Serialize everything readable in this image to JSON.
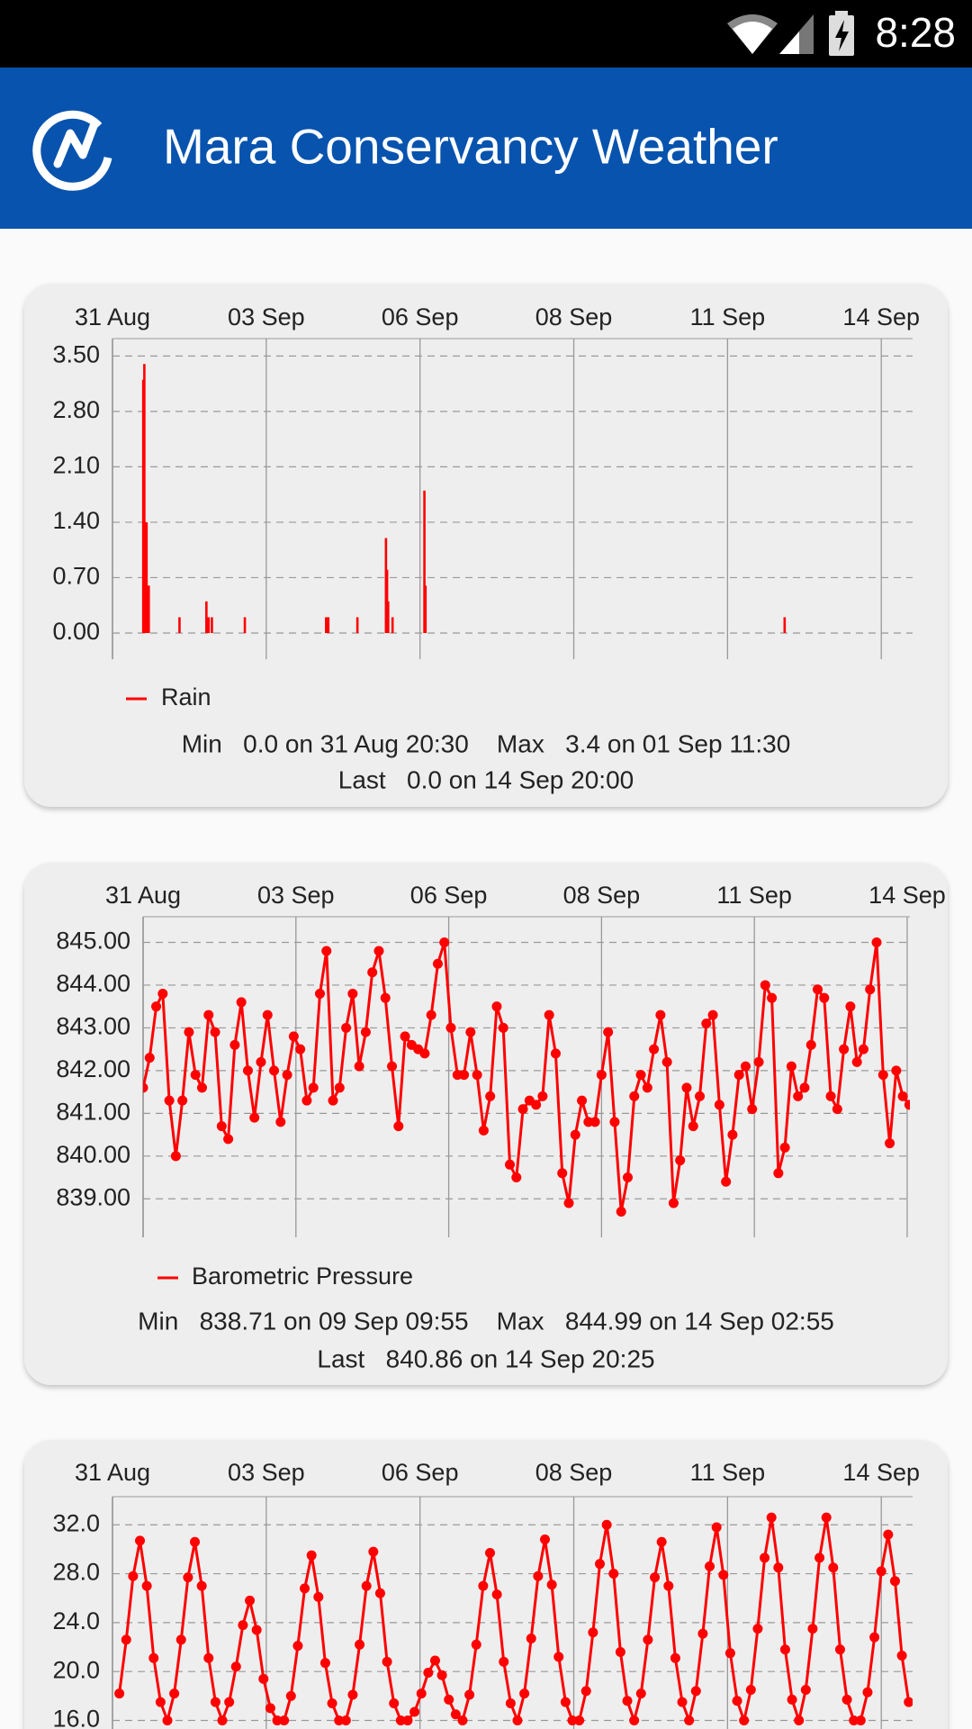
{
  "status_bar": {
    "time": "8:28"
  },
  "app_bar": {
    "title": "Mara Conservancy Weather"
  },
  "chart_data": [
    {
      "type": "bar",
      "xlim": [
        0,
        14.57
      ],
      "xticks": [
        {
          "value": 0,
          "label": "31 Aug"
        },
        {
          "value": 2.8,
          "label": "03 Sep"
        },
        {
          "value": 5.6,
          "label": "06 Sep"
        },
        {
          "value": 8.4,
          "label": "08 Sep"
        },
        {
          "value": 11.2,
          "label": "11 Sep"
        },
        {
          "value": 14,
          "label": "14 Sep"
        }
      ],
      "ylim": [
        -0.33,
        3.72
      ],
      "yticks": [
        {
          "value": 0,
          "label": "0.00"
        },
        {
          "value": 0.7,
          "label": "0.70"
        },
        {
          "value": 1.4,
          "label": "1.40"
        },
        {
          "value": 2.1,
          "label": "2.10"
        },
        {
          "value": 2.8,
          "label": "2.80"
        },
        {
          "value": 3.5,
          "label": "3.50"
        }
      ],
      "grid": true,
      "x": [
        0.56,
        0.58,
        0.62,
        0.66,
        1.22,
        1.71,
        1.75,
        1.81,
        2.41,
        3.89,
        3.93,
        4.46,
        4.98,
        5.0,
        5.02,
        5.1,
        5.68,
        5.7,
        12.24
      ],
      "series": [
        {
          "name": "Rain",
          "color": "#ff0000",
          "values": [
            3.2,
            3.4,
            1.4,
            0.6,
            0.2,
            0.4,
            0.2,
            0.2,
            0.2,
            0.2,
            0.2,
            0.2,
            1.2,
            0.8,
            0.4,
            0.2,
            1.8,
            0.6,
            0.2
          ]
        }
      ],
      "summary": [
        "Min   0.0 on 31 Aug 20:30    Max   3.4 on 01 Sep 11:30",
        "Last   0.0 on 14 Sep 20:00"
      ]
    },
    {
      "type": "line",
      "xlim": [
        0,
        14.05
      ],
      "xticks": [
        {
          "value": 0,
          "label": "31 Aug"
        },
        {
          "value": 2.8,
          "label": "03 Sep"
        },
        {
          "value": 5.6,
          "label": "06 Sep"
        },
        {
          "value": 8.4,
          "label": "08 Sep"
        },
        {
          "value": 11.2,
          "label": "11 Sep"
        },
        {
          "value": 14,
          "label": "14 Sep"
        }
      ],
      "ylim": [
        838.1,
        845.6
      ],
      "yticks": [
        {
          "value": 839,
          "label": "839.00"
        },
        {
          "value": 840,
          "label": "840.00"
        },
        {
          "value": 841,
          "label": "841.00"
        },
        {
          "value": 842,
          "label": "842.00"
        },
        {
          "value": 843,
          "label": "843.00"
        },
        {
          "value": 844,
          "label": "844.00"
        },
        {
          "value": 845,
          "label": "845.00"
        }
      ],
      "grid": true,
      "x": [
        0,
        0.12,
        0.24,
        0.36,
        0.48,
        0.6,
        0.72,
        0.84,
        0.96,
        1.08,
        1.2,
        1.32,
        1.44,
        1.56,
        1.68,
        1.8,
        1.92,
        2.04,
        2.16,
        2.28,
        2.4,
        2.52,
        2.64,
        2.76,
        2.88,
        3,
        3.12,
        3.24,
        3.36,
        3.48,
        3.6,
        3.72,
        3.84,
        3.96,
        4.08,
        4.2,
        4.32,
        4.44,
        4.56,
        4.68,
        4.8,
        4.92,
        5.04,
        5.16,
        5.28,
        5.4,
        5.52,
        5.64,
        5.76,
        5.88,
        6,
        6.12,
        6.24,
        6.36,
        6.48,
        6.6,
        6.72,
        6.84,
        6.96,
        7.08,
        7.2,
        7.32,
        7.44,
        7.56,
        7.68,
        7.8,
        7.92,
        8.04,
        8.16,
        8.28,
        8.4,
        8.52,
        8.64,
        8.76,
        8.88,
        9,
        9.12,
        9.24,
        9.36,
        9.48,
        9.6,
        9.72,
        9.84,
        9.96,
        10.08,
        10.2,
        10.32,
        10.44,
        10.56,
        10.68,
        10.8,
        10.92,
        11.04,
        11.16,
        11.28,
        11.4,
        11.52,
        11.64,
        11.76,
        11.88,
        12,
        12.12,
        12.24,
        12.36,
        12.48,
        12.6,
        12.72,
        12.84,
        12.96,
        13.08,
        13.2,
        13.32,
        13.44,
        13.56,
        13.68,
        13.8,
        13.92,
        14.04
      ],
      "series": [
        {
          "name": "Barometric Pressure",
          "color": "#ff0000",
          "values": [
            841.6,
            842.3,
            843.5,
            843.8,
            841.3,
            840.0,
            841.3,
            842.9,
            841.9,
            841.6,
            843.3,
            842.9,
            840.7,
            840.4,
            842.6,
            843.6,
            842.0,
            840.9,
            842.2,
            843.3,
            842.0,
            840.8,
            841.9,
            842.8,
            842.5,
            841.3,
            841.6,
            843.8,
            844.8,
            841.3,
            841.6,
            843.0,
            843.8,
            842.1,
            842.9,
            844.3,
            844.8,
            843.7,
            842.1,
            840.7,
            842.8,
            842.6,
            842.5,
            842.4,
            843.3,
            844.5,
            845.0,
            843.0,
            841.9,
            841.9,
            842.9,
            841.9,
            840.6,
            841.4,
            843.5,
            843.0,
            839.8,
            839.5,
            841.1,
            841.3,
            841.2,
            841.4,
            843.3,
            842.4,
            839.6,
            838.9,
            840.5,
            841.3,
            840.8,
            840.8,
            841.9,
            842.9,
            840.8,
            838.7,
            839.5,
            841.4,
            841.9,
            841.6,
            842.5,
            843.3,
            842.2,
            838.9,
            839.9,
            841.6,
            840.7,
            841.4,
            843.1,
            843.3,
            841.2,
            839.4,
            840.5,
            841.9,
            842.1,
            841.1,
            842.2,
            844.0,
            843.7,
            839.6,
            840.2,
            842.1,
            841.4,
            841.6,
            842.6,
            843.9,
            843.7,
            841.4,
            841.1,
            842.5,
            843.5,
            842.2,
            842.5,
            843.9,
            845.0,
            841.9,
            840.3,
            842.0,
            841.4,
            841.2
          ]
        }
      ],
      "summary": [
        "Min   838.71 on 09 Sep 09:55    Max   844.99 on 14 Sep 02:55",
        "Last   840.86 on 14 Sep 20:25"
      ]
    },
    {
      "type": "line",
      "xlim": [
        0,
        14.57
      ],
      "xticks": [
        {
          "value": 0,
          "label": "31 Aug"
        },
        {
          "value": 2.8,
          "label": "03 Sep"
        },
        {
          "value": 5.6,
          "label": "06 Sep"
        },
        {
          "value": 8.4,
          "label": "08 Sep"
        },
        {
          "value": 11.2,
          "label": "11 Sep"
        },
        {
          "value": 14,
          "label": "14 Sep"
        }
      ],
      "ylim": [
        15.3,
        34.3
      ],
      "yticks": [
        {
          "value": 16,
          "label": "16.0"
        },
        {
          "value": 20,
          "label": "20.0"
        },
        {
          "value": 24,
          "label": "24.0"
        },
        {
          "value": 28,
          "label": "28.0"
        },
        {
          "value": 32,
          "label": "32.0"
        }
      ],
      "grid": true,
      "x": [
        0.125,
        0.25,
        0.375,
        0.5,
        0.625,
        0.75,
        0.875,
        1.0,
        1.125,
        1.25,
        1.375,
        1.5,
        1.625,
        1.75,
        1.875,
        2.0,
        2.125,
        2.25,
        2.375,
        2.5,
        2.625,
        2.75,
        2.875,
        3.0,
        3.125,
        3.25,
        3.375,
        3.5,
        3.625,
        3.75,
        3.875,
        4.0,
        4.125,
        4.25,
        4.375,
        4.5,
        4.625,
        4.75,
        4.875,
        5.0,
        5.125,
        5.25,
        5.375,
        5.5,
        5.625,
        5.75,
        5.875,
        6.0,
        6.125,
        6.25,
        6.375,
        6.5,
        6.625,
        6.75,
        6.875,
        7.0,
        7.125,
        7.25,
        7.375,
        7.5,
        7.625,
        7.75,
        7.875,
        8.0,
        8.125,
        8.25,
        8.375,
        8.5,
        8.625,
        8.75,
        8.875,
        9.0,
        9.125,
        9.25,
        9.375,
        9.5,
        9.625,
        9.75,
        9.875,
        10.0,
        10.125,
        10.25,
        10.375,
        10.5,
        10.625,
        10.75,
        10.875,
        11.0,
        11.125,
        11.25,
        11.375,
        11.5,
        11.625,
        11.75,
        11.875,
        12.0,
        12.125,
        12.25,
        12.375,
        12.5,
        12.625,
        12.75,
        12.875,
        13.0,
        13.125,
        13.25,
        13.375,
        13.5,
        13.625,
        13.75,
        13.875,
        14.0,
        14.125,
        14.25,
        14.375,
        14.5
      ],
      "series": [
        {
          "color": "#ff0000",
          "values": [
            18.2,
            22.6,
            27.8,
            30.7,
            27.0,
            21.1,
            17.5,
            16.0,
            18.2,
            22.6,
            27.7,
            30.6,
            27.0,
            21.1,
            17.5,
            16.0,
            17.5,
            20.4,
            23.8,
            25.8,
            23.4,
            19.4,
            17.0,
            16.0,
            16.0,
            18.0,
            22.1,
            26.8,
            29.5,
            26.1,
            20.7,
            17.4,
            16.0,
            16.0,
            18.1,
            22.2,
            27.0,
            29.8,
            26.4,
            20.8,
            17.4,
            16.0,
            16.0,
            16.7,
            18.2,
            19.9,
            20.9,
            19.7,
            17.7,
            16.5,
            16.0,
            18.1,
            22.2,
            27.0,
            29.7,
            26.3,
            20.8,
            17.4,
            16.0,
            18.2,
            22.7,
            27.8,
            30.8,
            27.1,
            21.2,
            17.5,
            16.0,
            16.0,
            18.4,
            23.2,
            28.8,
            32.0,
            28.0,
            21.6,
            17.6,
            16.0,
            18.2,
            22.6,
            27.7,
            30.6,
            27.0,
            21.1,
            17.5,
            16.0,
            18.4,
            23.1,
            28.6,
            31.8,
            27.9,
            21.5,
            17.6,
            16.0,
            18.5,
            23.5,
            29.3,
            32.6,
            28.5,
            21.8,
            17.7,
            16.0,
            18.5,
            23.5,
            29.3,
            32.6,
            28.5,
            21.8,
            17.7,
            16.0,
            16.0,
            18.3,
            22.8,
            28.2,
            31.2,
            27.4,
            21.3,
            17.5
          ]
        }
      ]
    }
  ]
}
